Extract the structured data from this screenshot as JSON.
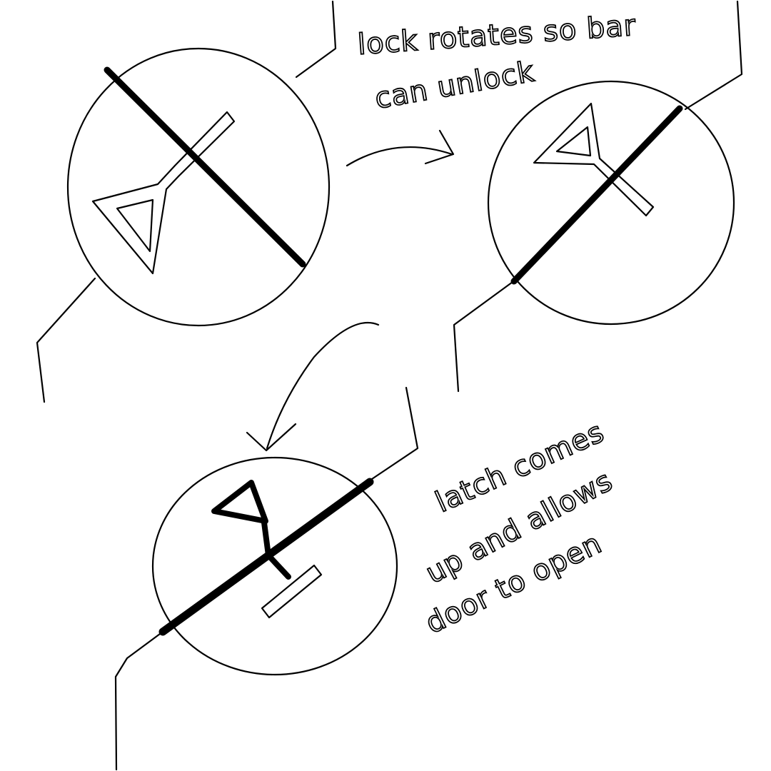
{
  "notes": {
    "note1_line1": "lock rotates so bar",
    "note1_line2": "can unlock",
    "note2_line1": "latch comes",
    "note2_line2": "up and allows",
    "note2_line3": "door to open"
  },
  "colors": {
    "ink": "#000000",
    "paper": "#ffffff"
  }
}
